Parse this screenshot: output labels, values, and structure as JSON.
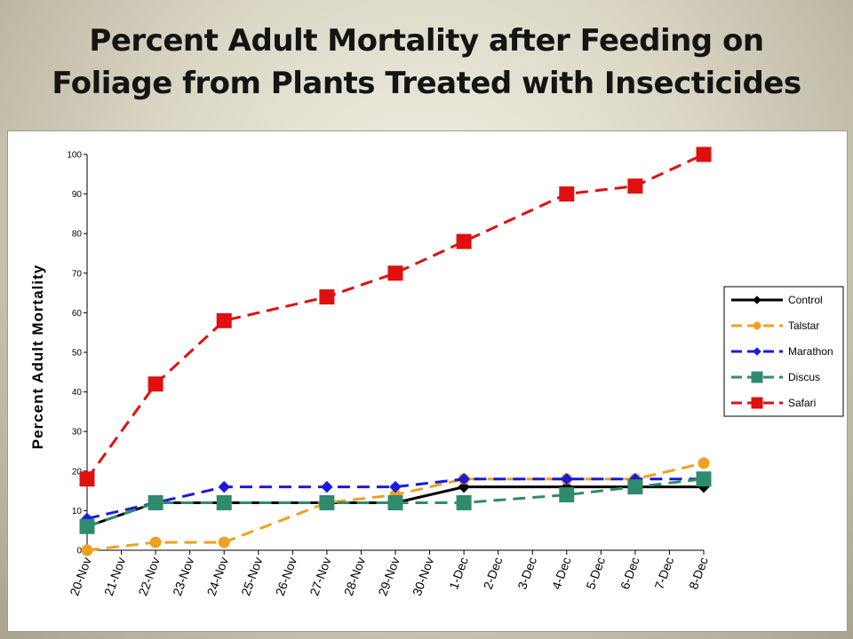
{
  "slide": {
    "title_line1": "Percent Adult Mortality after Feeding on",
    "title_line2": "Foliage from Plants Treated with Insecticides"
  },
  "chart_data": {
    "type": "line",
    "title": "Percent Adult Mortality after Feeding on Foliage from Plants Treated with Insecticides",
    "xlabel": "",
    "ylabel": "Percent Adult Mortality",
    "ylim": [
      0,
      100
    ],
    "yticks": [
      0,
      10,
      20,
      30,
      40,
      50,
      60,
      70,
      80,
      90,
      100
    ],
    "categories": [
      "20-Nov",
      "21-Nov",
      "22-Nov",
      "23-Nov",
      "24-Nov",
      "25-Nov",
      "26-Nov",
      "27-Nov",
      "28-Nov",
      "29-Nov",
      "30-Nov",
      "1-Dec",
      "2-Dec",
      "3-Dec",
      "4-Dec",
      "5-Dec",
      "6-Dec",
      "7-Dec",
      "8-Dec"
    ],
    "grid": false,
    "legend_position": "right",
    "series": [
      {
        "name": "Control",
        "color": "#000000",
        "dash": "solid",
        "marker": "diamond",
        "x": [
          "20-Nov",
          "22-Nov",
          "24-Nov",
          "27-Nov",
          "29-Nov",
          "1-Dec",
          "4-Dec",
          "6-Dec",
          "8-Dec"
        ],
        "values": [
          6,
          12,
          12,
          12,
          12,
          16,
          16,
          16,
          16
        ]
      },
      {
        "name": "Talstar",
        "color": "#f0a020",
        "dash": "dashed",
        "marker": "circle",
        "x": [
          "20-Nov",
          "22-Nov",
          "24-Nov",
          "27-Nov",
          "29-Nov",
          "1-Dec",
          "4-Dec",
          "6-Dec",
          "8-Dec"
        ],
        "values": [
          0,
          2,
          2,
          12,
          14,
          18,
          18,
          18,
          22
        ]
      },
      {
        "name": "Marathon",
        "color": "#1a1adc",
        "dash": "dashed",
        "marker": "diamond",
        "x": [
          "20-Nov",
          "22-Nov",
          "24-Nov",
          "27-Nov",
          "29-Nov",
          "1-Dec",
          "4-Dec",
          "6-Dec",
          "8-Dec"
        ],
        "values": [
          8,
          12,
          16,
          16,
          16,
          18,
          18,
          18,
          18
        ]
      },
      {
        "name": "Discus",
        "color": "#2e8b6e",
        "dash": "dashed",
        "marker": "square",
        "x": [
          "20-Nov",
          "22-Nov",
          "24-Nov",
          "27-Nov",
          "29-Nov",
          "1-Dec",
          "4-Dec",
          "6-Dec",
          "8-Dec"
        ],
        "values": [
          6,
          12,
          12,
          12,
          12,
          12,
          14,
          16,
          18
        ]
      },
      {
        "name": "Safari",
        "color": "#e01010",
        "dash": "dashed",
        "marker": "square",
        "x": [
          "20-Nov",
          "22-Nov",
          "24-Nov",
          "27-Nov",
          "29-Nov",
          "1-Dec",
          "4-Dec",
          "6-Dec",
          "8-Dec"
        ],
        "values": [
          18,
          42,
          58,
          64,
          70,
          78,
          90,
          92,
          100
        ]
      }
    ]
  }
}
